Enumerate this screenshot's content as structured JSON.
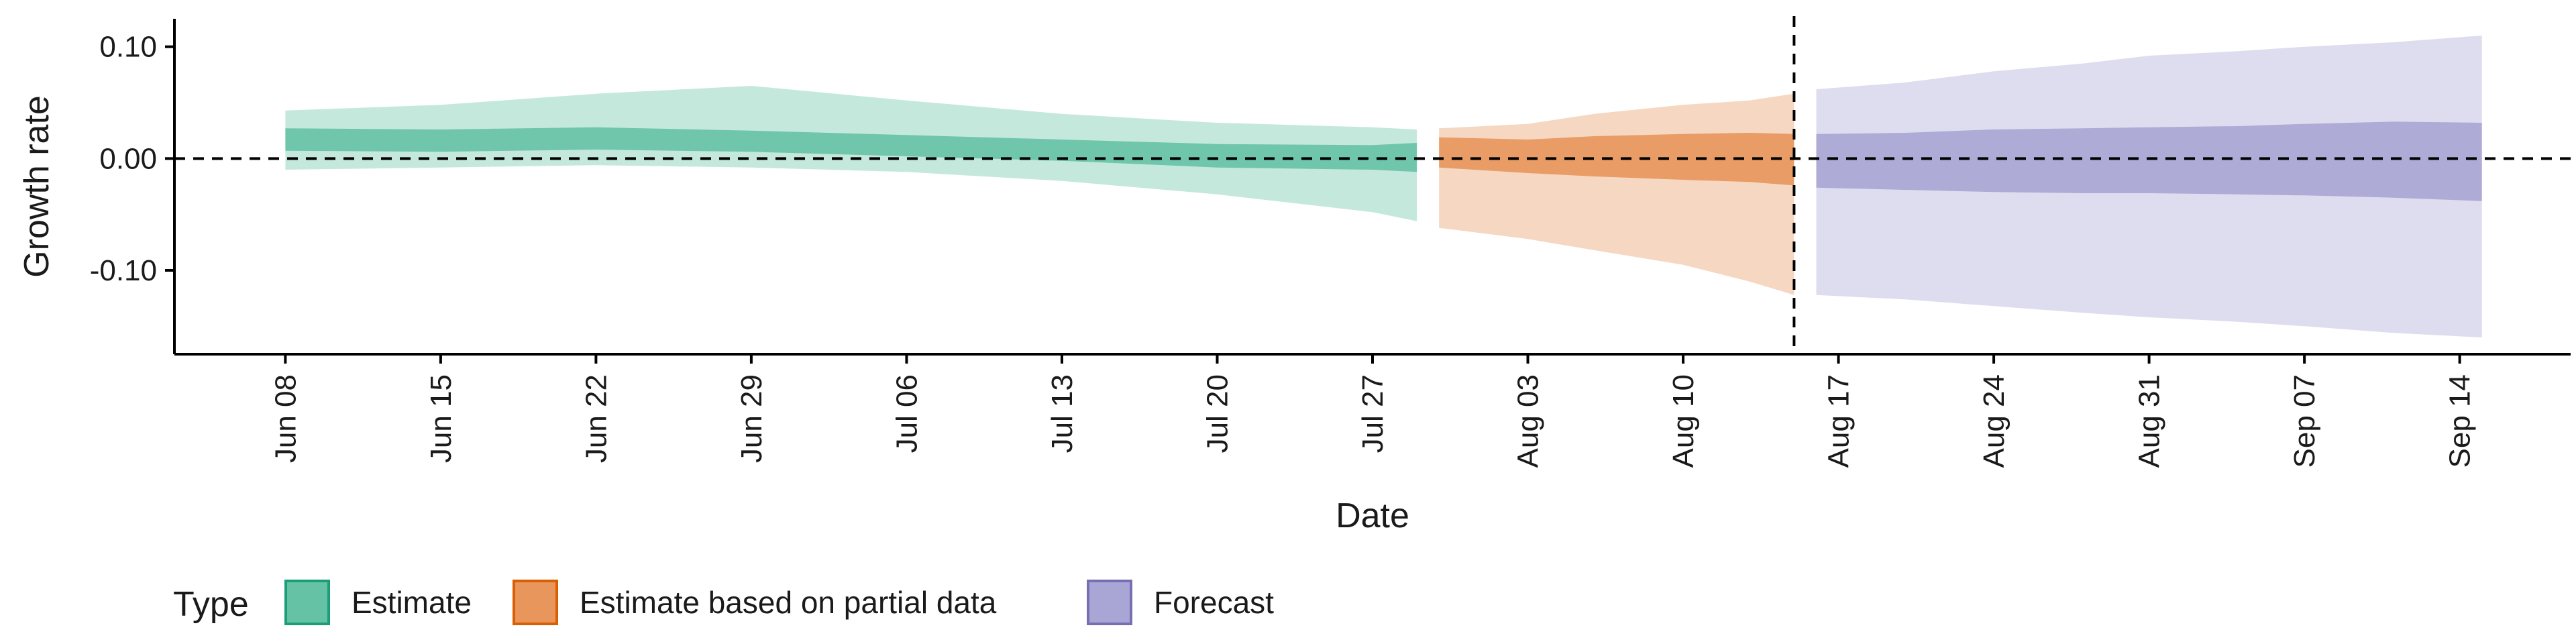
{
  "chart_data": {
    "type": "area",
    "xlabel": "Date",
    "ylabel": "Growth rate",
    "x_ticks": [
      "Jun 08",
      "Jun 15",
      "Jun 22",
      "Jun 29",
      "Jul 06",
      "Jul 13",
      "Jul 20",
      "Jul 27",
      "Aug 03",
      "Aug 10",
      "Aug 17",
      "Aug 24",
      "Aug 31",
      "Sep 07",
      "Sep 14"
    ],
    "y_ticks": [
      "0.10",
      "0.00",
      "-0.10"
    ],
    "ylim": [
      -0.175,
      0.125
    ],
    "xlim": [
      "2020-06-03",
      "2020-09-19"
    ],
    "reference_lines": {
      "horizontal_y": 0.0,
      "vertical_date": "2020-08-15"
    },
    "legend": {
      "title": "Type",
      "position": "bottom-left"
    },
    "series": [
      {
        "name": "Estimate",
        "color": "#1b9e77",
        "fill": "#66c2a5",
        "dates": [
          "2020-06-08",
          "2020-06-15",
          "2020-06-22",
          "2020-06-29",
          "2020-07-06",
          "2020-07-13",
          "2020-07-20",
          "2020-07-27",
          "2020-07-29"
        ],
        "outer_lower": [
          -0.01,
          -0.008,
          -0.006,
          -0.008,
          -0.012,
          -0.02,
          -0.032,
          -0.048,
          -0.056
        ],
        "outer_upper": [
          0.043,
          0.048,
          0.058,
          0.065,
          0.052,
          0.04,
          0.032,
          0.028,
          0.026
        ],
        "inner_lower": [
          0.007,
          0.006,
          0.008,
          0.006,
          0.002,
          -0.002,
          -0.008,
          -0.01,
          -0.012
        ],
        "inner_upper": [
          0.027,
          0.026,
          0.028,
          0.025,
          0.021,
          0.017,
          0.013,
          0.012,
          0.014
        ]
      },
      {
        "name": "Estimate based on partial data",
        "color": "#d95f02",
        "fill": "#e8965b",
        "dates": [
          "2020-07-30",
          "2020-08-03",
          "2020-08-06",
          "2020-08-10",
          "2020-08-13",
          "2020-08-15"
        ],
        "outer_lower": [
          -0.062,
          -0.072,
          -0.082,
          -0.095,
          -0.11,
          -0.122
        ],
        "outer_upper": [
          0.027,
          0.031,
          0.04,
          0.048,
          0.052,
          0.058
        ],
        "inner_lower": [
          -0.008,
          -0.013,
          -0.016,
          -0.019,
          -0.021,
          -0.024
        ],
        "inner_upper": [
          0.019,
          0.017,
          0.02,
          0.022,
          0.023,
          0.022
        ]
      },
      {
        "name": "Forecast",
        "color": "#7570b3",
        "fill": "#a9a5d4",
        "dates": [
          "2020-08-16",
          "2020-08-20",
          "2020-08-24",
          "2020-08-28",
          "2020-08-31",
          "2020-09-04",
          "2020-09-07",
          "2020-09-11",
          "2020-09-15"
        ],
        "outer_lower": [
          -0.122,
          -0.126,
          -0.132,
          -0.138,
          -0.142,
          -0.146,
          -0.15,
          -0.156,
          -0.16
        ],
        "outer_upper": [
          0.062,
          0.068,
          0.078,
          0.085,
          0.092,
          0.096,
          0.1,
          0.104,
          0.11
        ],
        "inner_lower": [
          -0.026,
          -0.028,
          -0.03,
          -0.031,
          -0.031,
          -0.032,
          -0.033,
          -0.035,
          -0.038
        ],
        "inner_upper": [
          0.022,
          0.023,
          0.026,
          0.027,
          0.028,
          0.029,
          0.031,
          0.033,
          0.032
        ]
      }
    ]
  }
}
